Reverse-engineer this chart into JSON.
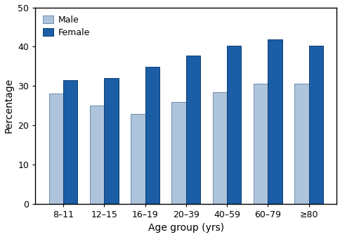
{
  "categories": [
    "8–11",
    "12–15",
    "16–19",
    "20–39",
    "40–59",
    "60–79",
    "≥80"
  ],
  "male_values": [
    28.0,
    25.0,
    22.9,
    26.0,
    28.5,
    30.5,
    30.5
  ],
  "female_values": [
    31.5,
    32.0,
    34.9,
    37.8,
    40.2,
    41.8,
    40.2
  ],
  "male_color": "#aec4dc",
  "female_color": "#1b5ea6",
  "male_edge_color": "#6a8eac",
  "female_edge_color": "#0d3d74",
  "xlabel": "Age group (yrs)",
  "ylabel": "Percentage",
  "ylim": [
    0,
    50
  ],
  "yticks": [
    0,
    10,
    20,
    30,
    40,
    50
  ],
  "bar_width": 0.35,
  "legend_labels": [
    "Male",
    "Female"
  ],
  "background_color": "#ffffff",
  "xlabel_fontsize": 10,
  "ylabel_fontsize": 10,
  "tick_fontsize": 9,
  "legend_fontsize": 9
}
